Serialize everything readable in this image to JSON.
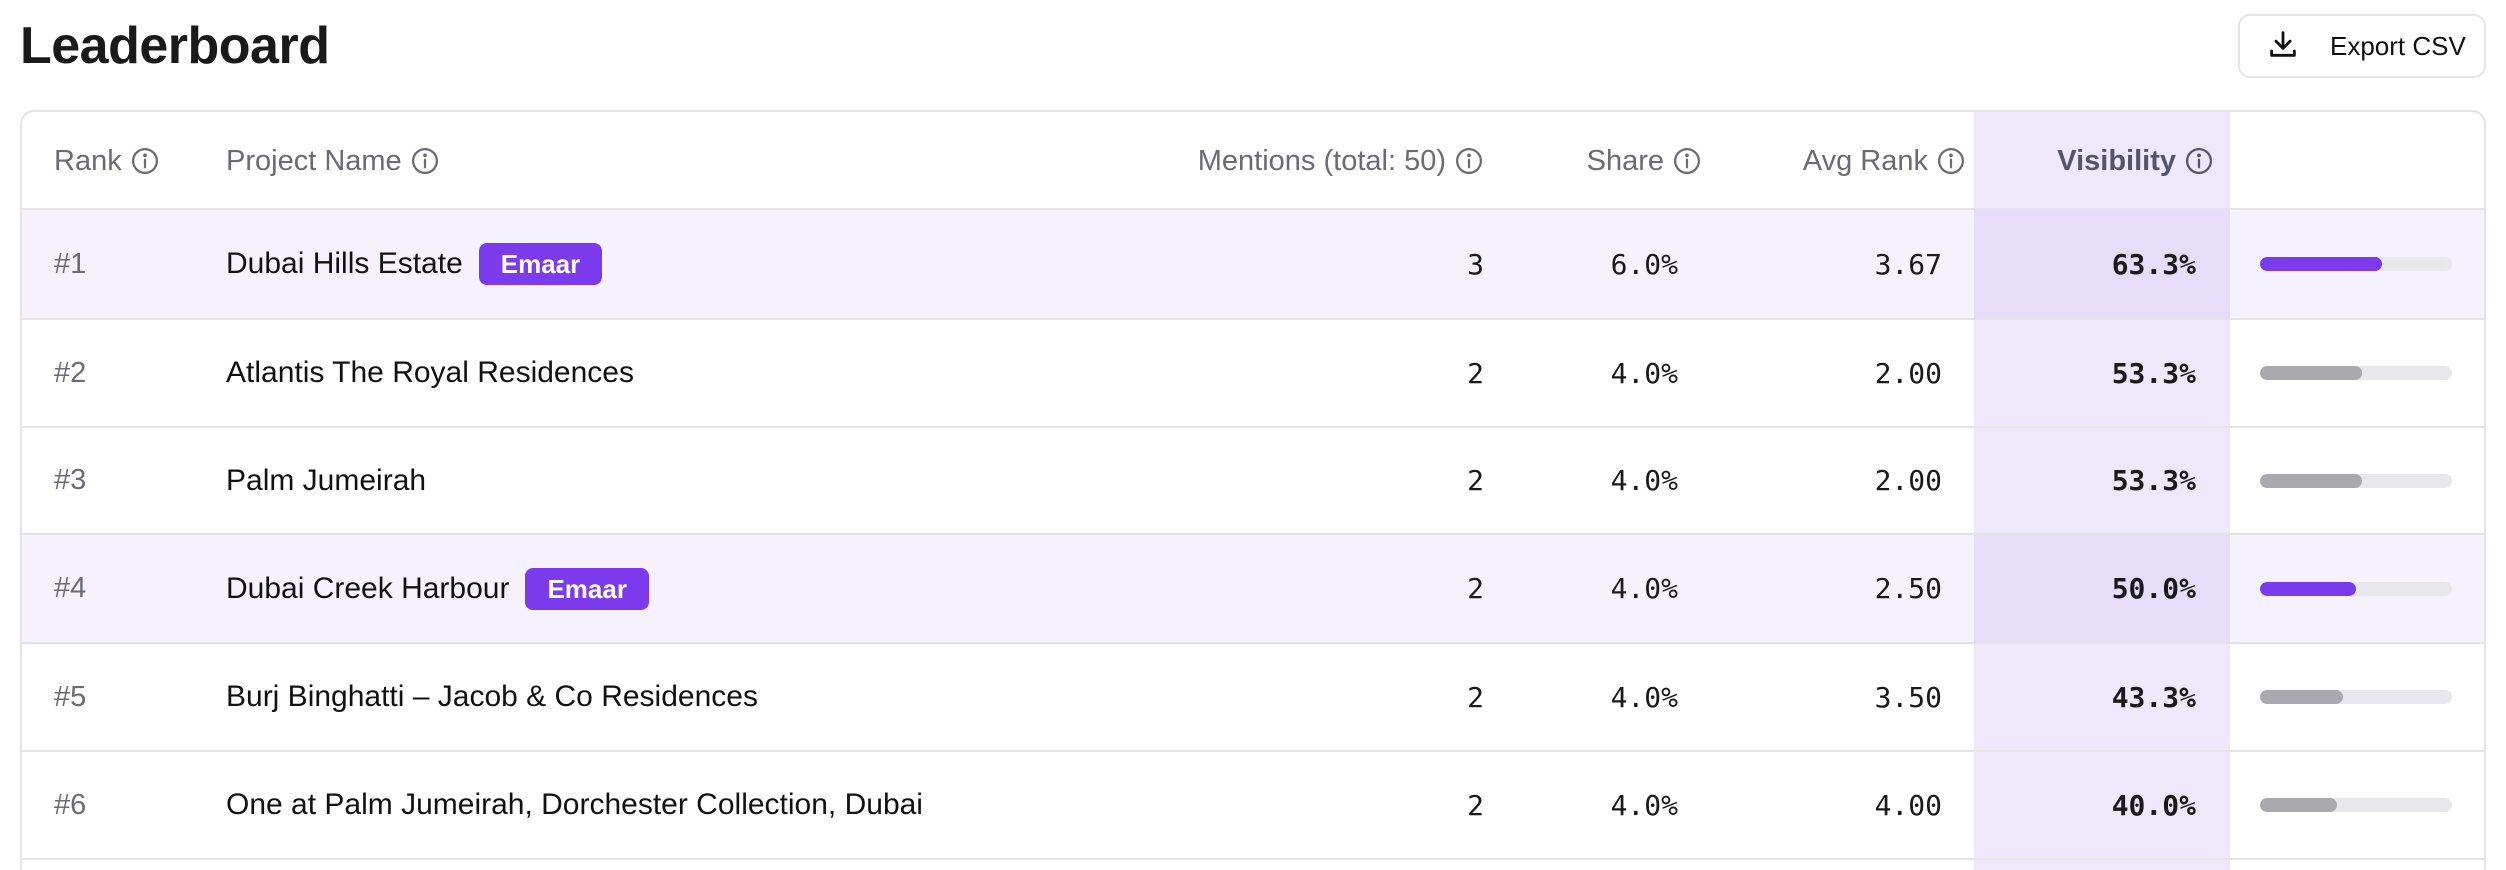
{
  "page": {
    "title": "Leaderboard"
  },
  "toolbar": {
    "export_label": "Export CSV"
  },
  "colors": {
    "accent": "#7c3aed",
    "bar_gray": "#a9a9ae",
    "bar_track": "#e8e8ec",
    "highlight_row": "#f5f2fd",
    "visibility_col": "#ede8fa"
  },
  "table": {
    "columns": {
      "rank": "Rank",
      "name": "Project Name",
      "mentions": "Mentions (total: 50)",
      "share": "Share",
      "avg_rank": "Avg Rank",
      "visibility": "Visibility"
    },
    "rows": [
      {
        "rank": "#1",
        "name": "Dubai Hills Estate",
        "badge": "Emaar",
        "mentions": "3",
        "share": "6.0%",
        "avg_rank": "3.67",
        "visibility": "63.3%",
        "visibility_value": 0.633,
        "highlight": true
      },
      {
        "rank": "#2",
        "name": "Atlantis The Royal Residences",
        "badge": "",
        "mentions": "2",
        "share": "4.0%",
        "avg_rank": "2.00",
        "visibility": "53.3%",
        "visibility_value": 0.533,
        "highlight": false
      },
      {
        "rank": "#3",
        "name": "Palm Jumeirah",
        "badge": "",
        "mentions": "2",
        "share": "4.0%",
        "avg_rank": "2.00",
        "visibility": "53.3%",
        "visibility_value": 0.533,
        "highlight": false
      },
      {
        "rank": "#4",
        "name": "Dubai Creek Harbour",
        "badge": "Emaar",
        "mentions": "2",
        "share": "4.0%",
        "avg_rank": "2.50",
        "visibility": "50.0%",
        "visibility_value": 0.5,
        "highlight": true
      },
      {
        "rank": "#5",
        "name": "Burj Binghatti – Jacob & Co Residences",
        "badge": "",
        "mentions": "2",
        "share": "4.0%",
        "avg_rank": "3.50",
        "visibility": "43.3%",
        "visibility_value": 0.433,
        "highlight": false
      },
      {
        "rank": "#6",
        "name": "One at Palm Jumeirah, Dorchester Collection, Dubai",
        "badge": "",
        "mentions": "2",
        "share": "4.0%",
        "avg_rank": "4.00",
        "visibility": "40.0%",
        "visibility_value": 0.4,
        "highlight": false
      }
    ]
  }
}
